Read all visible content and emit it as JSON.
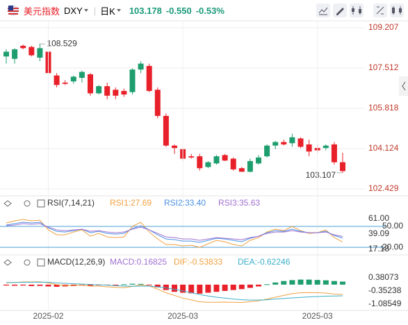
{
  "header": {
    "name": "美元指数",
    "symbol": "DXY",
    "period": "日K",
    "price": "103.178",
    "change": "-0.550",
    "change_pct": "-0.53%"
  },
  "chart_data": [
    {
      "type": "candlestick",
      "up_color": "#1e9e6e",
      "down_color": "#e8202a",
      "ylim": [
        102.429,
        109.207
      ],
      "yticks": [
        109.207,
        107.512,
        105.818,
        104.124,
        102.429
      ],
      "grid": true,
      "xticks": [
        {
          "value": 5,
          "label": "2025-02"
        },
        {
          "value": 21,
          "label": "2025-03"
        },
        {
          "value": 37,
          "label": "2025-03"
        }
      ],
      "open": [
        108.0,
        107.9,
        108.45,
        108.4,
        107.95,
        108.2,
        107.2,
        106.9,
        106.95,
        107.1,
        107.25,
        106.45,
        106.75,
        106.6,
        106.55,
        106.5,
        107.45,
        107.6,
        106.6,
        105.5,
        104.25,
        104.1,
        103.8,
        103.8,
        103.35,
        103.5,
        103.85,
        103.7,
        103.3,
        103.15,
        103.5,
        103.8,
        104.25,
        104.4,
        104.35,
        104.55,
        104.3,
        104.15,
        104.15,
        104.3,
        103.55
      ],
      "high": [
        108.3,
        108.35,
        108.5,
        108.45,
        108.529,
        108.3,
        107.3,
        107.0,
        107.2,
        107.4,
        107.3,
        106.8,
        106.9,
        106.7,
        106.65,
        107.5,
        107.8,
        107.7,
        106.7,
        105.6,
        104.3,
        104.15,
        103.9,
        103.9,
        103.6,
        103.85,
        103.9,
        103.75,
        103.35,
        103.7,
        103.85,
        104.3,
        104.45,
        104.5,
        104.75,
        104.6,
        104.5,
        104.3,
        104.3,
        104.4,
        103.95
      ],
      "low": [
        107.7,
        107.7,
        108.3,
        108.0,
        107.8,
        107.2,
        106.7,
        106.8,
        106.85,
        106.9,
        106.35,
        106.4,
        106.2,
        106.2,
        106.3,
        106.4,
        107.3,
        106.5,
        105.4,
        104.2,
        103.9,
        103.6,
        103.7,
        103.2,
        103.3,
        103.45,
        103.6,
        103.2,
        103.15,
        103.12,
        103.45,
        103.75,
        104.1,
        104.25,
        104.2,
        104.15,
        103.8,
        103.95,
        104.05,
        103.45,
        103.107
      ],
      "close": [
        108.2,
        108.3,
        108.35,
        108.05,
        108.35,
        107.3,
        106.8,
        106.85,
        107.15,
        107.35,
        106.45,
        106.75,
        106.35,
        106.35,
        106.4,
        107.45,
        107.7,
        106.55,
        105.5,
        104.25,
        104.15,
        103.7,
        103.75,
        103.3,
        103.55,
        103.8,
        103.62,
        103.25,
        103.15,
        103.6,
        103.75,
        104.25,
        104.4,
        104.3,
        104.6,
        104.2,
        104.0,
        104.05,
        104.25,
        103.55,
        103.178
      ],
      "marked_high": 4,
      "marked_low": 40
    },
    {
      "type": "line",
      "title": "RSI(7,14,21)",
      "ylim": [
        17.18,
        61.0
      ],
      "yticks": [
        {
          "value": 61,
          "label": "61.00"
        },
        {
          "value": 39.09,
          "label": "39.09"
        },
        {
          "value": 17.18,
          "label": "17.18"
        }
      ],
      "hlines": [
        {
          "value": 50,
          "label": "50.00"
        },
        {
          "value": 20,
          "label": "20.00"
        }
      ],
      "hline_color": "#4a9fd8",
      "series": [
        {
          "name": "RSI1:27.69",
          "color": "#f0a040",
          "values": [
            55,
            58,
            60,
            58,
            59,
            45,
            38,
            38,
            42,
            45,
            36,
            40,
            35,
            34,
            35,
            50,
            56,
            42,
            32,
            24,
            24,
            22,
            23,
            20,
            25,
            30,
            28,
            24,
            22,
            30,
            34,
            42,
            46,
            44,
            50,
            44,
            40,
            41,
            45,
            34,
            27.69
          ]
        },
        {
          "name": "RSI2:33.40",
          "color": "#4a90e2",
          "values": [
            52,
            54,
            56,
            55,
            56,
            48,
            43,
            42,
            44,
            46,
            41,
            43,
            40,
            39,
            40,
            47,
            51,
            45,
            38,
            32,
            31,
            29,
            29,
            27,
            30,
            33,
            32,
            30,
            28,
            33,
            36,
            41,
            44,
            43,
            46,
            43,
            41,
            41,
            43,
            37,
            33.4
          ]
        },
        {
          "name": "RSI3:35.63",
          "color": "#a070d0",
          "values": [
            51,
            52,
            54,
            53,
            54,
            49,
            45,
            44,
            45,
            46,
            43,
            44,
            42,
            41,
            42,
            46,
            49,
            45,
            40,
            35,
            34,
            32,
            32,
            30,
            32,
            34,
            33,
            32,
            31,
            34,
            36,
            40,
            42,
            42,
            44,
            42,
            41,
            41,
            42,
            38,
            35.63
          ]
        }
      ]
    },
    {
      "type": "macd",
      "title": "MACD(12,26,9)",
      "ylim": [
        -1.08549,
        0.38073
      ],
      "yticks": [
        0.38073,
        -0.35238,
        -1.08549
      ],
      "up_color": "#1e9e6e",
      "down_color": "#e8202a",
      "series": [
        {
          "name": "MACD:0.16825",
          "color": "#a070d0",
          "values": [
            -0.05,
            -0.06,
            -0.05,
            -0.08,
            -0.07,
            -0.1,
            -0.12,
            -0.1,
            -0.08,
            -0.05,
            -0.06,
            -0.04,
            -0.02,
            -0.01,
            0.02,
            0.05,
            0.04,
            -0.02,
            -0.15,
            -0.3,
            -0.4,
            -0.45,
            -0.48,
            -0.5,
            -0.45,
            -0.4,
            -0.35,
            -0.3,
            -0.25,
            -0.18,
            -0.1,
            0.02,
            0.12,
            0.2,
            0.25,
            0.28,
            0.28,
            0.26,
            0.24,
            0.2,
            0.16825
          ]
        },
        {
          "name": "DIF:-0.53833",
          "color": "#f0a040",
          "values": [
            0.1,
            0.12,
            0.15,
            0.15,
            0.16,
            0.1,
            0.0,
            -0.05,
            -0.05,
            -0.03,
            -0.08,
            -0.08,
            -0.12,
            -0.15,
            -0.17,
            -0.1,
            -0.02,
            -0.08,
            -0.25,
            -0.45,
            -0.6,
            -0.75,
            -0.85,
            -0.95,
            -0.98,
            -0.98,
            -0.97,
            -0.98,
            -0.99,
            -0.95,
            -0.9,
            -0.8,
            -0.7,
            -0.6,
            -0.5,
            -0.45,
            -0.44,
            -0.45,
            -0.47,
            -0.52,
            -0.53833
          ]
        },
        {
          "name": "DEA:-0.62246",
          "color": "#3aaec8",
          "values": [
            0.12,
            0.12,
            0.13,
            0.13,
            0.14,
            0.13,
            0.1,
            0.07,
            0.05,
            0.03,
            0.01,
            -0.01,
            -0.03,
            -0.06,
            -0.08,
            -0.09,
            -0.08,
            -0.08,
            -0.12,
            -0.18,
            -0.26,
            -0.35,
            -0.45,
            -0.55,
            -0.63,
            -0.7,
            -0.75,
            -0.8,
            -0.84,
            -0.86,
            -0.86,
            -0.84,
            -0.8,
            -0.77,
            -0.74,
            -0.71,
            -0.68,
            -0.66,
            -0.64,
            -0.63,
            -0.62246
          ]
        }
      ]
    }
  ]
}
